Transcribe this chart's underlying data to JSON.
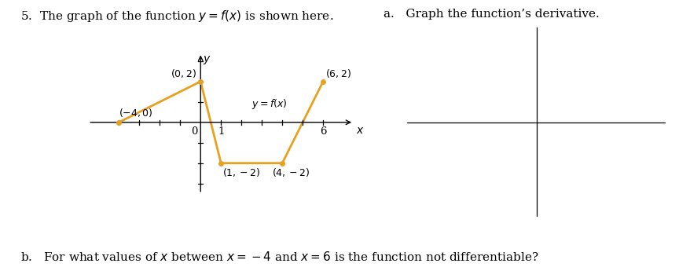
{
  "title": "5.  The graph of the function $y = f(x)$ is shown here.",
  "label_a": "a.   Graph the function’s derivative.",
  "label_b": "b.   For what values of $x$ between $x = -4$ and $x = 6$ is the function not differentiable?",
  "graph_points": [
    [
      -4,
      0
    ],
    [
      0,
      2
    ],
    [
      1,
      -2
    ],
    [
      4,
      -2
    ],
    [
      6,
      2
    ]
  ],
  "curve_color": "#E8A020",
  "dot_color": "#E8A020",
  "xlim": [
    -5.5,
    7.8
  ],
  "ylim": [
    -3.5,
    3.5
  ],
  "xticks": [
    -4,
    -3,
    -2,
    -1,
    1,
    2,
    3,
    4,
    5,
    6
  ],
  "yticks": [
    -3,
    -2,
    -1,
    1,
    2,
    3
  ],
  "background_color": "#ffffff",
  "text_color": "#000000"
}
